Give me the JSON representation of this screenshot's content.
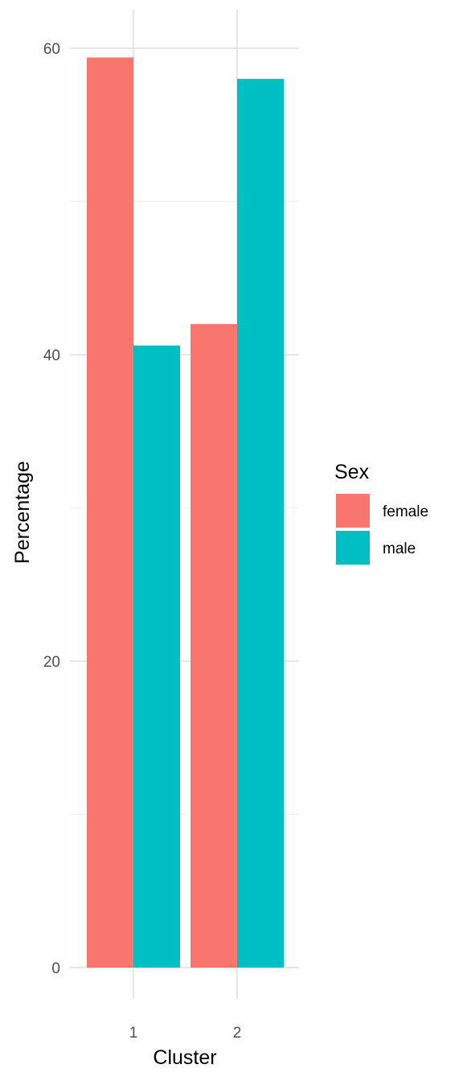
{
  "chart_data": {
    "type": "bar",
    "categories": [
      "1",
      "2"
    ],
    "series": [
      {
        "name": "female",
        "values": [
          59.4,
          42.0
        ],
        "color": "#F8766D"
      },
      {
        "name": "male",
        "values": [
          40.6,
          58.0
        ],
        "color": "#00BFC4"
      }
    ],
    "xlabel": "Cluster",
    "ylabel": "Percentage",
    "ylim": [
      0,
      60
    ],
    "yticks": [
      0,
      20,
      40,
      60
    ],
    "ytick_labels": [
      "0",
      "20",
      "40",
      "60"
    ],
    "grid": true,
    "legend": {
      "title": "Sex",
      "position": "right",
      "entries": [
        "female",
        "male"
      ]
    }
  }
}
